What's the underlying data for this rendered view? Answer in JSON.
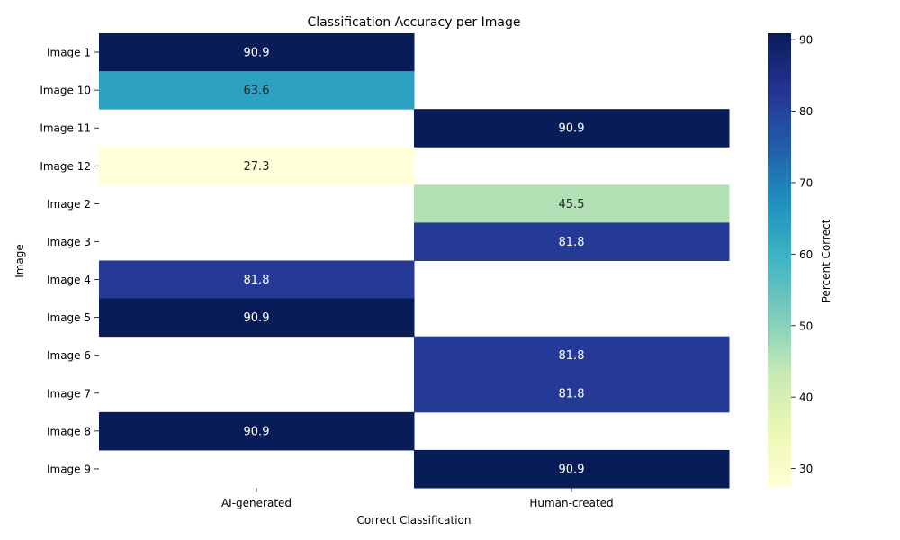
{
  "chart_data": {
    "type": "heatmap",
    "title": "Classification Accuracy per Image",
    "xlabel": "Correct Classification",
    "ylabel": "Image",
    "columns": [
      "AI-generated",
      "Human-created"
    ],
    "rows": [
      "Image 1",
      "Image 10",
      "Image 11",
      "Image 12",
      "Image 2",
      "Image 3",
      "Image 4",
      "Image 5",
      "Image 6",
      "Image 7",
      "Image 8",
      "Image 9"
    ],
    "values": [
      [
        90.9,
        null
      ],
      [
        63.6,
        null
      ],
      [
        null,
        90.9
      ],
      [
        27.3,
        null
      ],
      [
        null,
        45.5
      ],
      [
        null,
        81.8
      ],
      [
        81.8,
        null
      ],
      [
        90.9,
        null
      ],
      [
        null,
        81.8
      ],
      [
        null,
        81.8
      ],
      [
        90.9,
        null
      ],
      [
        null,
        90.9
      ]
    ],
    "colorbar": {
      "label": "Percent Correct",
      "min": 27.3,
      "max": 90.9,
      "ticks": [
        30,
        40,
        50,
        60,
        70,
        80,
        90
      ],
      "colormap": "YlGnBu"
    }
  }
}
